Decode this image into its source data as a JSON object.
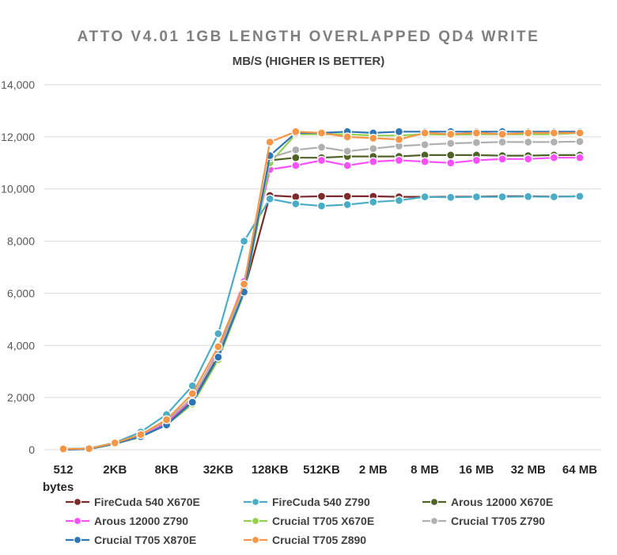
{
  "chart_data": {
    "type": "line",
    "title": "ATTO V4.01 1GB LENGTH OVERLAPPED QD4 WRITE",
    "subtitle": "MB/S (HIGHER IS BETTER)",
    "xlabel": "bytes",
    "ylabel": "",
    "ylim": [
      0,
      14000
    ],
    "yticks": [
      "0",
      "2,000",
      "4,000",
      "6,000",
      "8,000",
      "10,000",
      "12,000",
      "14,000"
    ],
    "grid": true,
    "legend_position": "bottom",
    "x": [
      "512",
      "1KB",
      "2KB",
      "4KB",
      "8KB",
      "16KB",
      "32KB",
      "64KB",
      "128KB",
      "256KB",
      "512KB",
      "1 MB",
      "2 MB",
      "4 MB",
      "8 MB",
      "12 MB",
      "16 MB",
      "24 MB",
      "32 MB",
      "48 MB",
      "64 MB"
    ],
    "xtick_labels": [
      "512",
      "",
      "2KB",
      "",
      "8KB",
      "",
      "32KB",
      "",
      "128KB",
      "",
      "512KB",
      "",
      "2 MB",
      "",
      "8 MB",
      "",
      "16 MB",
      "",
      "32 MB",
      "",
      "64 MB"
    ],
    "series": [
      {
        "name": "FireCuda 540 X670E",
        "color": "#7b2b2b",
        "values": [
          10,
          20,
          230,
          500,
          1000,
          1850,
          3600,
          6100,
          9750,
          9700,
          9720,
          9720,
          9720,
          9700,
          9700,
          9700,
          9710,
          9720,
          9720,
          9710,
          9720
        ]
      },
      {
        "name": "FireCuda 540 Z790",
        "color": "#4bacc6",
        "values": [
          30,
          50,
          270,
          680,
          1350,
          2450,
          4450,
          8000,
          9620,
          9430,
          9350,
          9400,
          9500,
          9560,
          9700,
          9680,
          9700,
          9700,
          9710,
          9700,
          9720
        ]
      },
      {
        "name": "Arous 12000 X670E",
        "color": "#4f6228",
        "values": [
          10,
          20,
          230,
          500,
          1000,
          1850,
          3550,
          6050,
          11100,
          11200,
          11200,
          11250,
          11250,
          11250,
          11300,
          11300,
          11300,
          11280,
          11280,
          11300,
          11300
        ]
      },
      {
        "name": "Arous 12000 Z790",
        "color": "#ff4fff",
        "values": [
          10,
          20,
          240,
          520,
          1050,
          1950,
          3800,
          6450,
          10750,
          10900,
          11100,
          10900,
          11050,
          11100,
          11050,
          11000,
          11100,
          11150,
          11150,
          11200,
          11200
        ]
      },
      {
        "name": "Crucial T705 X670E",
        "color": "#92d050",
        "values": [
          10,
          20,
          220,
          490,
          950,
          1750,
          3450,
          6000,
          11000,
          12100,
          12100,
          12100,
          12050,
          12050,
          12100,
          12080,
          12100,
          12100,
          12100,
          12100,
          12150
        ]
      },
      {
        "name": "Crucial T705 Z790",
        "color": "#b0b0b0",
        "values": [
          20,
          30,
          250,
          560,
          1100,
          2000,
          3750,
          6200,
          11200,
          11500,
          11600,
          11450,
          11550,
          11650,
          11700,
          11750,
          11780,
          11800,
          11800,
          11800,
          11820
        ]
      },
      {
        "name": "Crucial T705 X870E",
        "color": "#2e75b6",
        "values": [
          10,
          20,
          230,
          500,
          950,
          1820,
          3550,
          6050,
          11280,
          12150,
          12150,
          12200,
          12150,
          12200,
          12200,
          12200,
          12200,
          12200,
          12200,
          12200,
          12200
        ]
      },
      {
        "name": "Crucial T705 Z890",
        "color": "#f79646",
        "values": [
          30,
          40,
          260,
          580,
          1150,
          2150,
          3950,
          6350,
          11800,
          12200,
          12150,
          12000,
          11950,
          11900,
          12150,
          12100,
          12150,
          12100,
          12150,
          12150,
          12150
        ]
      }
    ]
  }
}
